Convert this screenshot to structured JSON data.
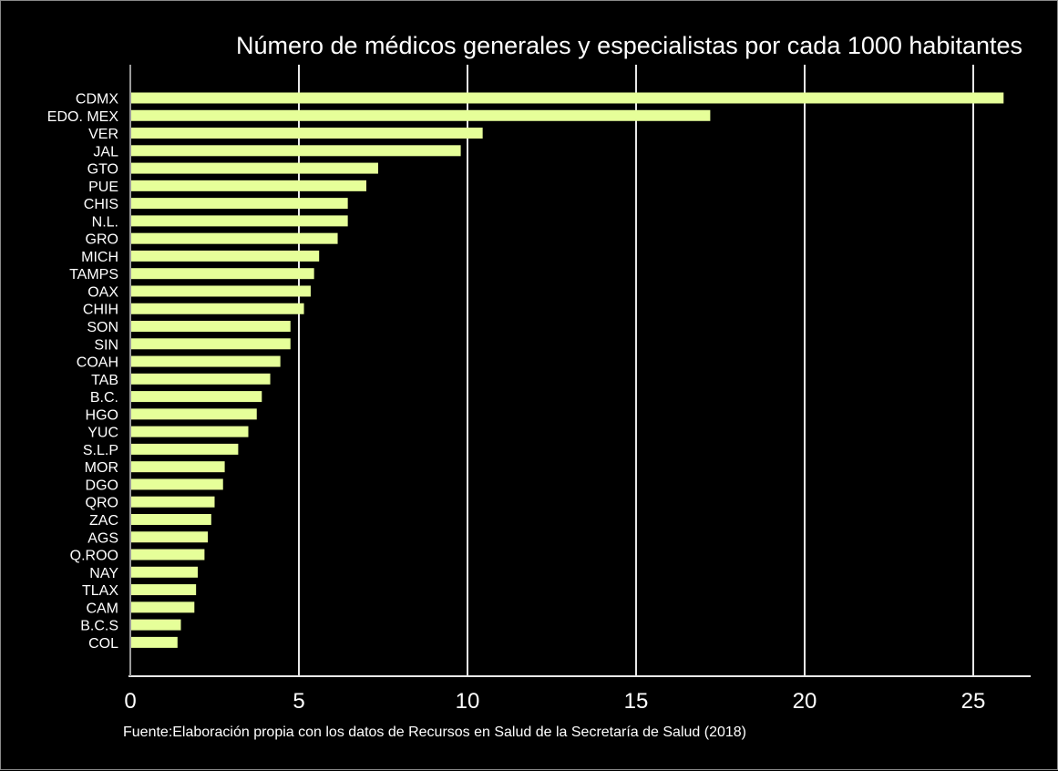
{
  "chart_data": {
    "type": "bar",
    "orientation": "horizontal",
    "title": "Número de médicos generales y especialistas por cada 1000 habitantes",
    "source": "Fuente:Elaboración propia con los datos de Recursos en Salud de la Secretaría de Salud (2018)",
    "xlabel": "",
    "ylabel": "",
    "xlim": [
      0,
      26.8
    ],
    "xticks": [
      0,
      5,
      10,
      15,
      20,
      25
    ],
    "grid": true,
    "categories": [
      "CDMX",
      "EDO. MEX",
      "VER",
      "JAL",
      "GTO",
      "PUE",
      "CHIS",
      "N.L.",
      "GRO",
      "MICH",
      "TAMPS",
      "OAX",
      "CHIH",
      "SON",
      "SIN",
      "COAH",
      "TAB",
      "B.C.",
      "HGO",
      "YUC",
      "S.L.P",
      "MOR",
      "DGO",
      "QRO",
      "ZAC",
      "AGS",
      "Q.ROO",
      "NAY",
      "TLAX",
      "CAM",
      "B.C.S",
      "COL"
    ],
    "values": [
      25.9,
      17.2,
      10.45,
      9.8,
      7.35,
      7.0,
      6.45,
      6.45,
      6.15,
      5.6,
      5.45,
      5.35,
      5.15,
      4.75,
      4.75,
      4.45,
      4.15,
      3.9,
      3.75,
      3.5,
      3.2,
      2.8,
      2.75,
      2.5,
      2.4,
      2.3,
      2.2,
      2.0,
      1.95,
      1.9,
      1.5,
      1.4
    ],
    "colors": {
      "bar": "#e6ff99",
      "grid": "#e8e8e8",
      "text": "#ffffff",
      "background": "#000000"
    }
  }
}
